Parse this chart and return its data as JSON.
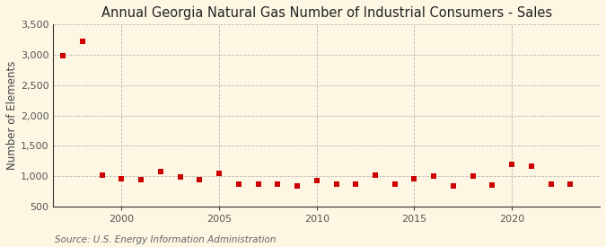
{
  "title": "Annual Georgia Natural Gas Number of Industrial Consumers - Sales",
  "ylabel": "Number of Elements",
  "source": "Source: U.S. Energy Information Administration",
  "background_color": "#fdf6e3",
  "plot_bg_color": "#fdf6e3",
  "years": [
    1997,
    1998,
    1999,
    2000,
    2001,
    2002,
    2003,
    2004,
    2005,
    2006,
    2007,
    2008,
    2009,
    2010,
    2011,
    2012,
    2013,
    2014,
    2015,
    2016,
    2017,
    2018,
    2019,
    2020,
    2021,
    2022,
    2023
  ],
  "values": [
    2980,
    3220,
    1010,
    960,
    940,
    1080,
    990,
    940,
    1050,
    870,
    870,
    870,
    840,
    920,
    870,
    870,
    1010,
    870,
    960,
    1000,
    840,
    1000,
    850,
    1190,
    1170,
    870,
    870
  ],
  "ylim": [
    500,
    3500
  ],
  "yticks": [
    500,
    1000,
    1500,
    2000,
    2500,
    3000,
    3500
  ],
  "ytick_labels": [
    "500",
    "1,000",
    "1,500",
    "2,000",
    "2,500",
    "3,000",
    "3,500"
  ],
  "xlim": [
    1996.5,
    2024.5
  ],
  "xticks": [
    2000,
    2005,
    2010,
    2015,
    2020
  ],
  "marker_color": "#cc0000",
  "grid_color": "#bbbbbb",
  "title_fontsize": 10.5,
  "label_fontsize": 8.5,
  "tick_fontsize": 8,
  "source_fontsize": 7.5
}
